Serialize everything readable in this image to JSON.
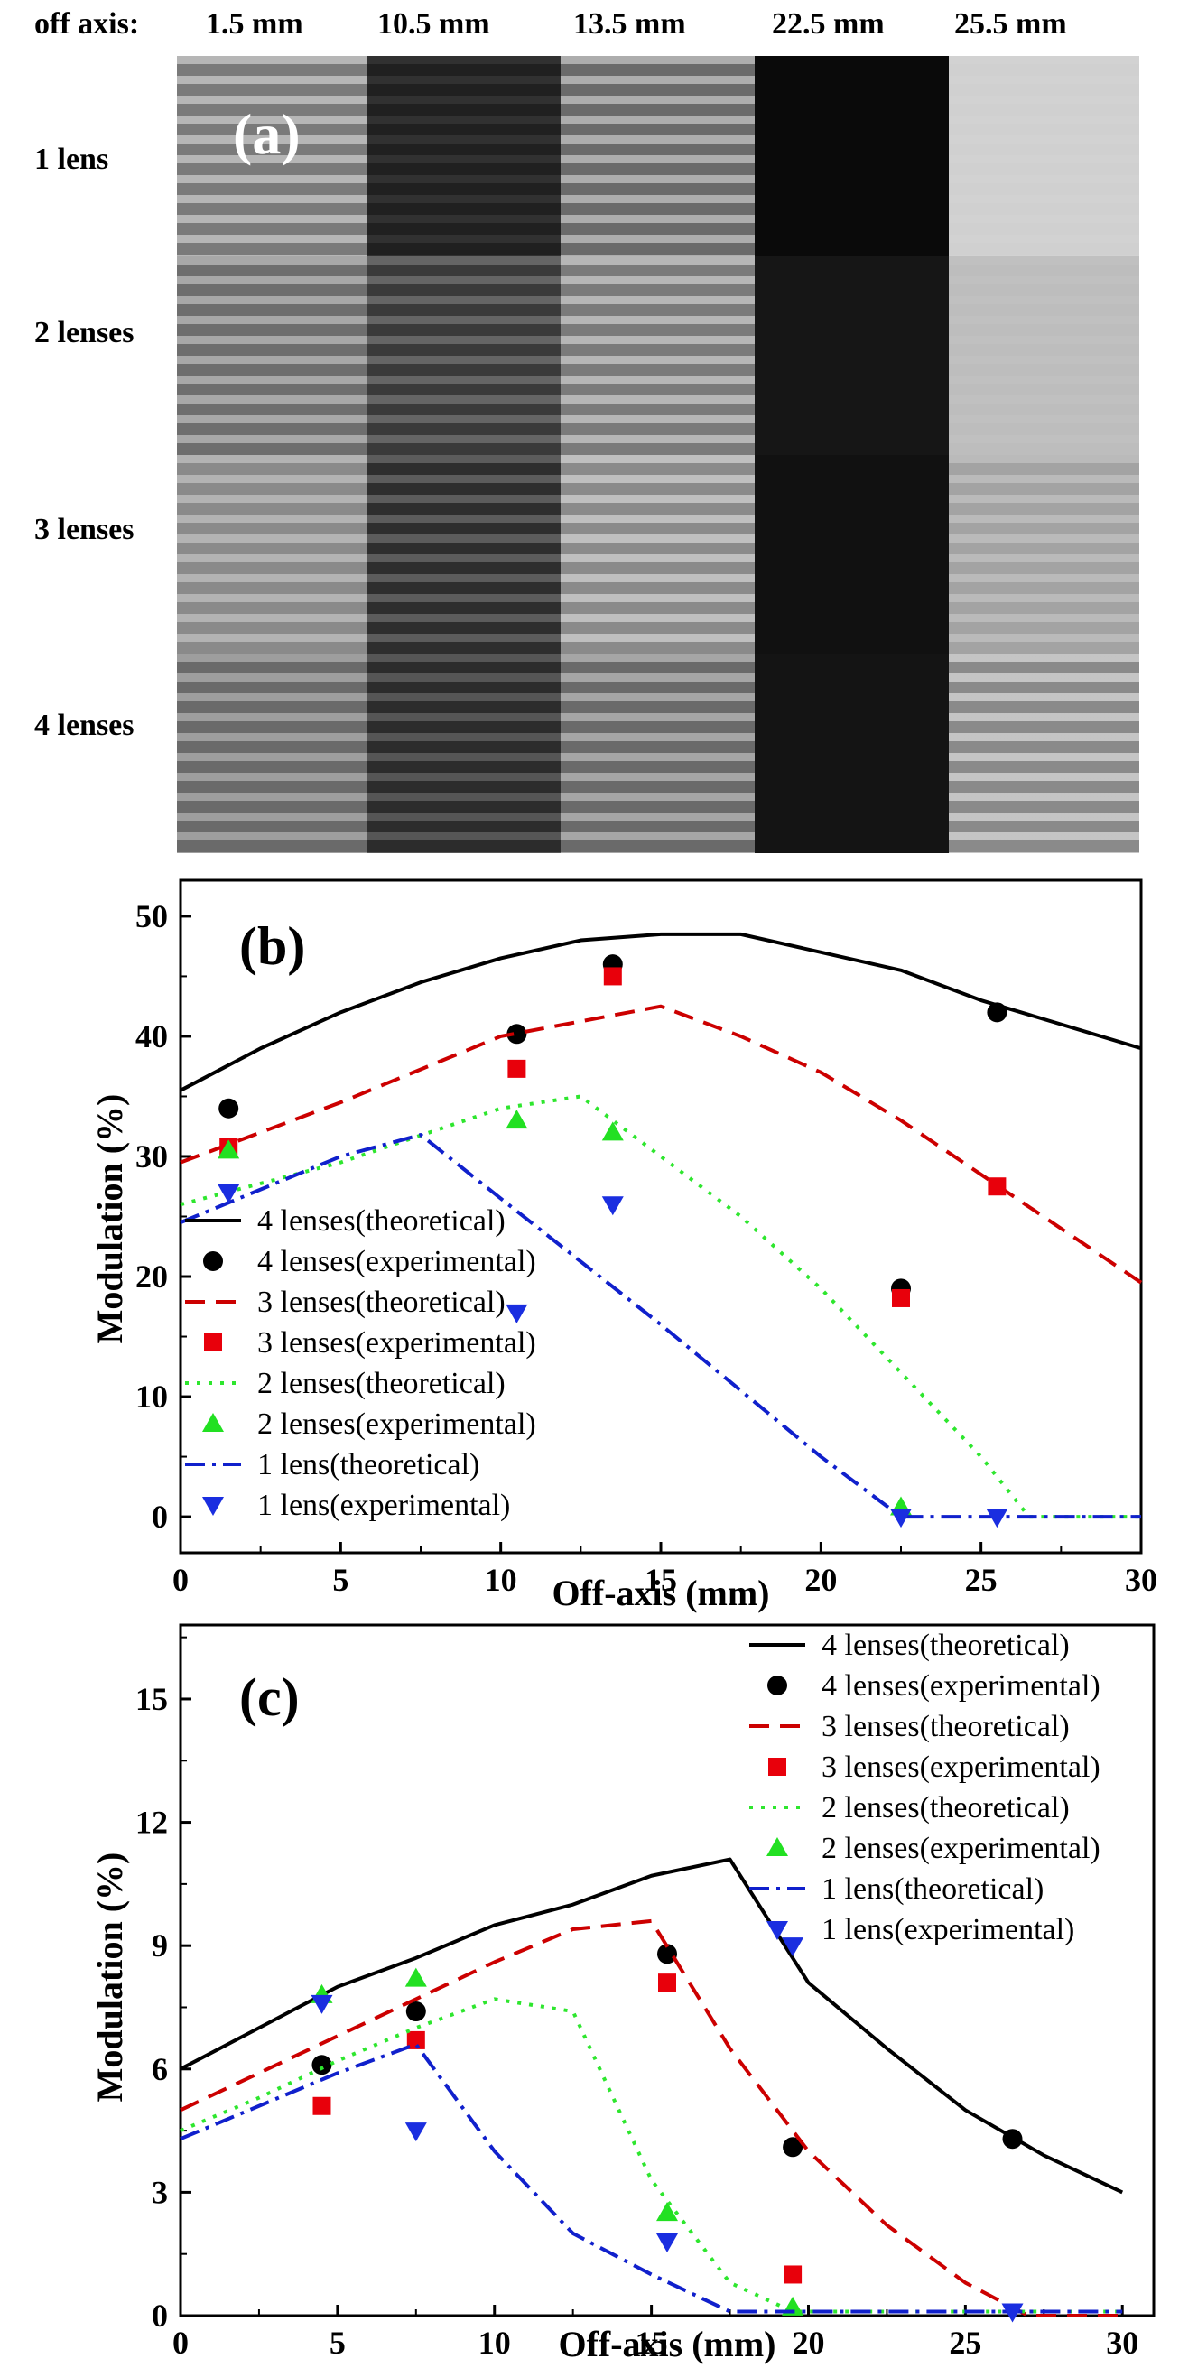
{
  "panel_a": {
    "label": "(a)",
    "col_header_prefix": "off axis:",
    "columns": [
      "1.5 mm",
      "10.5 mm",
      "13.5 mm",
      "22.5 mm",
      "25.5 mm"
    ],
    "rows": [
      "1 lens",
      "2 lenses",
      "3 lenses",
      "4 lenses"
    ]
  },
  "chart_data": [
    {
      "type": "line",
      "panel_label": "(b)",
      "xlabel": "Off-axis (mm)",
      "ylabel": "Modulation (%)",
      "xlim": [
        0,
        30
      ],
      "ylim": [
        -3,
        53
      ],
      "xticks": [
        0,
        5,
        10,
        15,
        20,
        25,
        30
      ],
      "yticks": [
        0,
        10,
        20,
        30,
        40,
        50
      ],
      "legend_position": "left",
      "series": [
        {
          "name": "4 lenses(theoretical)",
          "kind": "line",
          "dash": "solid",
          "color": "#000000",
          "x": [
            0,
            2.5,
            5,
            7.5,
            10,
            12.5,
            15,
            17.5,
            20,
            22.5,
            25,
            27.5,
            30
          ],
          "y": [
            35.5,
            39,
            42,
            44.5,
            46.5,
            48,
            48.5,
            48.5,
            47,
            45.5,
            43,
            41,
            39
          ]
        },
        {
          "name": "4 lenses(experimental)",
          "kind": "marker",
          "marker": "circle",
          "color": "#000000",
          "x": [
            1.5,
            10.5,
            13.5,
            22.5,
            25.5
          ],
          "y": [
            34,
            40.2,
            46,
            19,
            42
          ]
        },
        {
          "name": "3 lenses(theoretical)",
          "kind": "line",
          "dash": "dash",
          "color": "#cc0000",
          "x": [
            0,
            5,
            10,
            15,
            17.5,
            20,
            22.5,
            25,
            27.5,
            30
          ],
          "y": [
            29.5,
            34.5,
            40,
            42.5,
            40,
            37,
            33,
            28.5,
            24,
            19.5
          ]
        },
        {
          "name": "3 lenses(experimental)",
          "kind": "marker",
          "marker": "square",
          "color": "#e8000b",
          "x": [
            1.5,
            10.5,
            13.5,
            22.5,
            25.5
          ],
          "y": [
            30.8,
            37.3,
            45,
            18.2,
            27.5
          ]
        },
        {
          "name": "2 lenses(theoretical)",
          "kind": "line",
          "dash": "dot",
          "color": "#2ee62e",
          "x": [
            0,
            5,
            10,
            12.5,
            15,
            17.5,
            20,
            22.5,
            25,
            26.5,
            30
          ],
          "y": [
            26,
            29.5,
            34,
            35,
            30,
            25,
            19,
            12,
            5,
            0,
            0
          ]
        },
        {
          "name": "2 lenses(experimental)",
          "kind": "marker",
          "marker": "triangle-up",
          "color": "#22e022",
          "x": [
            1.5,
            10.5,
            13.5,
            22.5
          ],
          "y": [
            30.5,
            33,
            32,
            0.8
          ]
        },
        {
          "name": "1 lens(theoretical)",
          "kind": "line",
          "dash": "dashdot",
          "color": "#1020cc",
          "x": [
            0,
            5,
            7.5,
            10,
            15,
            20,
            22.5,
            25,
            30
          ],
          "y": [
            24.5,
            30,
            31.8,
            26.5,
            16,
            5,
            0,
            0,
            0
          ]
        },
        {
          "name": "1 lens(experimental)",
          "kind": "marker",
          "marker": "triangle-down",
          "color": "#1a2ee0",
          "x": [
            1.5,
            10.5,
            13.5,
            22.5,
            25.5
          ],
          "y": [
            27,
            17,
            26,
            0,
            0
          ]
        }
      ]
    },
    {
      "type": "line",
      "panel_label": "(c)",
      "xlabel": "Off-axis (mm)",
      "ylabel": "Modulation (%)",
      "xlim": [
        0,
        31
      ],
      "ylim": [
        0,
        16.8
      ],
      "xticks": [
        0,
        5,
        10,
        15,
        20,
        25,
        30
      ],
      "yticks": [
        0,
        3,
        6,
        9,
        12,
        15
      ],
      "legend_position": "top-right",
      "series": [
        {
          "name": "4 lenses(theoretical)",
          "kind": "line",
          "dash": "solid",
          "color": "#000000",
          "x": [
            0,
            2.5,
            5,
            7.5,
            10,
            12.5,
            15,
            17.5,
            20,
            22.5,
            25,
            27.5,
            30
          ],
          "y": [
            6,
            7,
            8,
            8.7,
            9.5,
            10,
            10.7,
            11.1,
            8.1,
            6.5,
            5,
            3.9,
            3
          ]
        },
        {
          "name": "4 lenses(experimental)",
          "kind": "marker",
          "marker": "circle",
          "color": "#000000",
          "x": [
            4.5,
            7.5,
            15.5,
            19.5,
            26.5
          ],
          "y": [
            6.1,
            7.4,
            8.8,
            4.1,
            4.3
          ]
        },
        {
          "name": "3 lenses(theoretical)",
          "kind": "line",
          "dash": "dash",
          "color": "#cc0000",
          "x": [
            0,
            2.5,
            5,
            7.5,
            10,
            12.5,
            15,
            17.5,
            20,
            22.5,
            25,
            27,
            30
          ],
          "y": [
            5,
            5.9,
            6.8,
            7.7,
            8.6,
            9.4,
            9.6,
            6.5,
            4,
            2.2,
            0.8,
            0,
            0
          ]
        },
        {
          "name": "3 lenses(experimental)",
          "kind": "marker",
          "marker": "square",
          "color": "#e8000b",
          "x": [
            4.5,
            7.5,
            15.5,
            19.5
          ],
          "y": [
            5.1,
            6.7,
            8.1,
            1
          ]
        },
        {
          "name": "2 lenses(theoretical)",
          "kind": "line",
          "dash": "dot",
          "color": "#2ee62e",
          "x": [
            0,
            2.5,
            5,
            7.5,
            10,
            12.5,
            15,
            17.5,
            19.5,
            30
          ],
          "y": [
            4.5,
            5.3,
            6.2,
            7,
            7.7,
            7.4,
            3.3,
            0.8,
            0.1,
            0.1
          ]
        },
        {
          "name": "2 lenses(experimental)",
          "kind": "marker",
          "marker": "triangle-up",
          "color": "#22e022",
          "x": [
            4.5,
            7.5,
            15.5,
            19.5
          ],
          "y": [
            7.8,
            8.2,
            2.5,
            0.2
          ]
        },
        {
          "name": "1 lens(theoretical)",
          "kind": "line",
          "dash": "dashdot",
          "color": "#1020cc",
          "x": [
            0,
            2.5,
            5,
            7.5,
            10,
            12.5,
            15,
            17.5,
            30
          ],
          "y": [
            4.3,
            5.1,
            5.9,
            6.6,
            4,
            2,
            1,
            0.1,
            0.1
          ]
        },
        {
          "name": "1 lens(experimental)",
          "kind": "marker",
          "marker": "triangle-down",
          "color": "#1a2ee0",
          "x": [
            4.5,
            7.5,
            15.5,
            19.5,
            26.5
          ],
          "y": [
            7.6,
            4.5,
            1.8,
            9,
            0.1
          ]
        }
      ]
    }
  ]
}
